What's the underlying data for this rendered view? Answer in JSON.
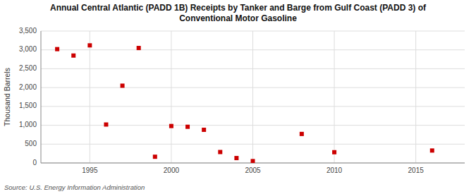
{
  "chart_data": {
    "type": "scatter",
    "title": "Annual Central Atlantic (PADD 1B) Receipts by Tanker and Barge from Gulf Coast (PADD 3) of\nConventional Motor Gasoline",
    "ylabel": "Thousand Barrels",
    "source": "Source: U.S. Energy Information Administration",
    "x": [
      1993,
      1994,
      1995,
      1996,
      1997,
      1998,
      1999,
      2000,
      2001,
      2002,
      2003,
      2004,
      2005,
      2008,
      2010,
      2016
    ],
    "values": [
      3020,
      2850,
      3120,
      1020,
      2050,
      3050,
      165,
      980,
      960,
      880,
      290,
      130,
      50,
      770,
      285,
      330
    ],
    "color": "#cc0000",
    "marker": "square",
    "xlim": [
      1992,
      2018
    ],
    "xticks": [
      1995,
      2000,
      2005,
      2010,
      2015
    ],
    "ylim": [
      0,
      3500
    ],
    "yticks": [
      0,
      500,
      {
        "value": 1000,
        "label": "1,000"
      },
      {
        "value": 1500,
        "label": "1,500"
      },
      {
        "value": 2000,
        "label": "2,000"
      },
      {
        "value": 2500,
        "label": "2,500"
      },
      {
        "value": 3000,
        "label": "3,000"
      },
      {
        "value": 3500,
        "label": "3,500"
      }
    ],
    "grid": true
  }
}
